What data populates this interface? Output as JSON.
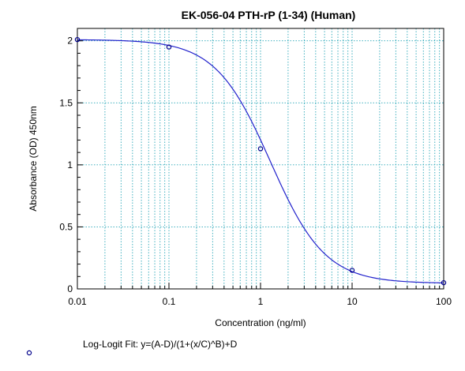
{
  "chart_data": {
    "type": "scatter",
    "title": "EK-056-04 PTH-rP (1-34) (Human)",
    "xlabel": "Concentration (ng/ml)",
    "ylabel": "Absorbance (OD) 450nm",
    "x_scale": "log",
    "xlim": [
      0.01,
      100
    ],
    "ylim": [
      0,
      2.1
    ],
    "x_ticks": [
      "0.01",
      "0.1",
      "1",
      "10",
      "100"
    ],
    "y_ticks": [
      "0",
      "0.5",
      "1",
      "1.5",
      "2"
    ],
    "grid": true,
    "series": [
      {
        "points": [
          {
            "x": 0.01,
            "y": 2.01
          },
          {
            "x": 0.1,
            "y": 1.95
          },
          {
            "x": 1,
            "y": 1.13
          },
          {
            "x": 10,
            "y": 0.15
          },
          {
            "x": 100,
            "y": 0.05
          }
        ],
        "color": "#00008b"
      }
    ],
    "fit": {
      "A": 2.01,
      "B": 1.45,
      "C": 1.28,
      "D": 0.045,
      "color": "#2222cc"
    },
    "legend": {
      "prefix": "Log-Logit Fit: ",
      "formula": "y=(A-D)/(1+(x/C)^B)+D"
    }
  }
}
